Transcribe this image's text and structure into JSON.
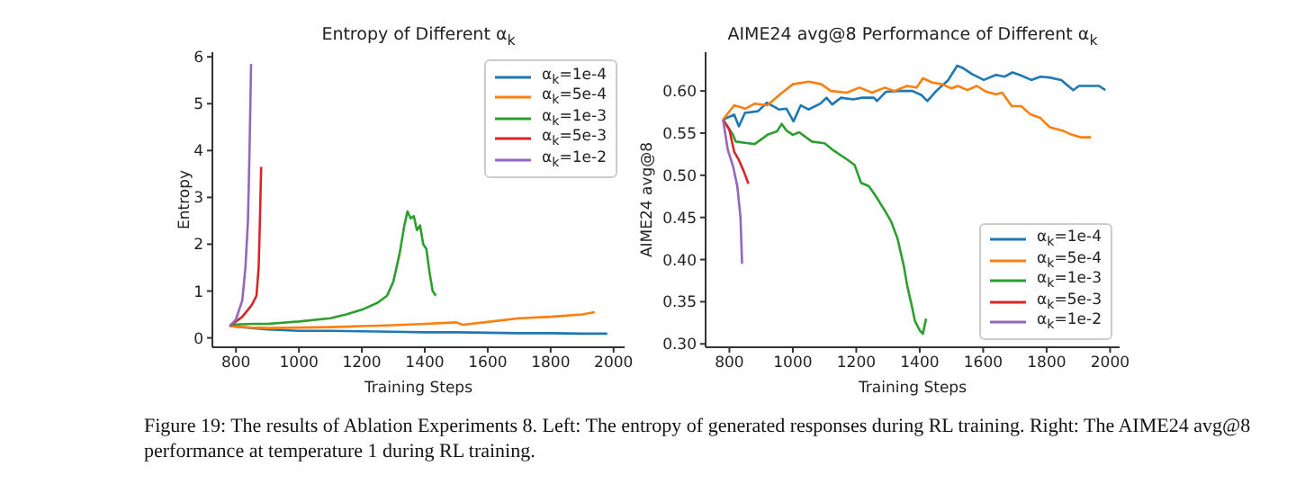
{
  "chart_data": [
    {
      "type": "line",
      "title": "Entropy of Different α$_{k}$",
      "xlabel": "Training Steps",
      "ylabel": "Entropy",
      "xlim": [
        725,
        2035
      ],
      "xticks": [
        800,
        1000,
        1200,
        1400,
        1600,
        1800,
        2000
      ],
      "ylim": [
        -0.2,
        6.1
      ],
      "yticks": [
        0,
        1,
        2,
        3,
        4,
        5,
        6
      ],
      "legend": "top right",
      "marker": "none",
      "line_style": "solid",
      "annotations": [
        "Figure 19: The results of Ablation Experiments 8. Left: The entropy of generated responses during RL training. Right: The AIME24 avg@8 performance at temperature 1 during RL training."
      ],
      "series": [
        {
          "name": "α$_{k}$=1e-4",
          "color": "#1f77b4",
          "x": [
            780,
            850,
            900,
            1000,
            1100,
            1200,
            1300,
            1400,
            1500,
            1600,
            1700,
            1800,
            1900,
            1980
          ],
          "values": [
            0.25,
            0.21,
            0.18,
            0.15,
            0.15,
            0.14,
            0.13,
            0.12,
            0.12,
            0.11,
            0.1,
            0.1,
            0.09,
            0.09
          ]
        },
        {
          "name": "α$_{k}$=5e-4",
          "color": "#ff7f0e",
          "x": [
            780,
            850,
            900,
            1000,
            1100,
            1200,
            1300,
            1400,
            1500,
            1520,
            1600,
            1700,
            1800,
            1900,
            1940
          ],
          "values": [
            0.25,
            0.22,
            0.21,
            0.22,
            0.23,
            0.25,
            0.27,
            0.3,
            0.33,
            0.28,
            0.34,
            0.42,
            0.45,
            0.5,
            0.55
          ]
        },
        {
          "name": "α$_{k}$=1e-3",
          "color": "#2ca02c",
          "x": [
            780,
            850,
            900,
            1000,
            1100,
            1150,
            1200,
            1250,
            1280,
            1300,
            1320,
            1335,
            1345,
            1355,
            1365,
            1375,
            1385,
            1395,
            1405,
            1415,
            1425,
            1435
          ],
          "values": [
            0.28,
            0.3,
            0.3,
            0.35,
            0.42,
            0.5,
            0.6,
            0.75,
            0.9,
            1.2,
            1.8,
            2.4,
            2.7,
            2.55,
            2.6,
            2.3,
            2.4,
            2.0,
            1.9,
            1.4,
            1.0,
            0.9
          ]
        },
        {
          "name": "α$_{k}$=5e-3",
          "color": "#d62728",
          "x": [
            780,
            820,
            850,
            865,
            872,
            876,
            880
          ],
          "values": [
            0.25,
            0.45,
            0.7,
            0.9,
            1.5,
            2.5,
            3.65
          ]
        },
        {
          "name": "α$_{k}$=1e-2",
          "color": "#9467bd",
          "x": [
            780,
            800,
            820,
            830,
            838,
            843,
            848
          ],
          "values": [
            0.25,
            0.4,
            0.8,
            1.5,
            2.5,
            4.0,
            5.85
          ]
        }
      ]
    },
    {
      "type": "line",
      "title": "AIME24 avg@8 Performance of Different α$_{k}$",
      "xlabel": "Training Steps",
      "ylabel": "AIME24 avg@8",
      "xlim": [
        725,
        2030
      ],
      "xticks": [
        800,
        1000,
        1200,
        1400,
        1600,
        1800,
        2000
      ],
      "ylim": [
        0.296,
        0.646
      ],
      "yticks": [
        {
          "value": 0.3,
          "label": "0.30"
        },
        {
          "value": 0.35,
          "label": "0.35"
        },
        {
          "value": 0.4,
          "label": "0.40"
        },
        {
          "value": 0.45,
          "label": "0.45"
        },
        {
          "value": 0.5,
          "label": "0.50"
        },
        {
          "value": 0.55,
          "label": "0.55"
        },
        {
          "value": 0.6,
          "label": "0.60"
        }
      ],
      "legend": "bottom right",
      "marker": "none",
      "line_style": "solid",
      "series": [
        {
          "name": "α$_{k}$=1e-4",
          "color": "#1f77b4",
          "x": [
            780,
            815,
            830,
            849,
            890,
            918,
            956,
            980,
            1002,
            1025,
            1049,
            1087,
            1106,
            1124,
            1152,
            1190,
            1218,
            1256,
            1265,
            1293,
            1331,
            1377,
            1406,
            1424,
            1452,
            1490,
            1518,
            1537,
            1565,
            1602,
            1640,
            1668,
            1692,
            1715,
            1752,
            1780,
            1809,
            1846,
            1884,
            1902,
            1940,
            1965,
            1985
          ],
          "values": [
            0.566,
            0.572,
            0.558,
            0.574,
            0.576,
            0.586,
            0.578,
            0.579,
            0.564,
            0.583,
            0.578,
            0.585,
            0.592,
            0.584,
            0.592,
            0.59,
            0.592,
            0.592,
            0.588,
            0.599,
            0.6,
            0.6,
            0.595,
            0.588,
            0.6,
            0.613,
            0.63,
            0.627,
            0.62,
            0.613,
            0.619,
            0.617,
            0.622,
            0.619,
            0.613,
            0.617,
            0.616,
            0.613,
            0.601,
            0.606,
            0.606,
            0.606,
            0.601
          ]
        },
        {
          "name": "α$_{k}$=5e-4",
          "color": "#ff7f0e",
          "x": [
            780,
            815,
            850,
            880,
            920,
            960,
            1000,
            1050,
            1090,
            1120,
            1170,
            1210,
            1250,
            1290,
            1320,
            1360,
            1390,
            1410,
            1440,
            1470,
            1500,
            1520,
            1550,
            1580,
            1610,
            1640,
            1660,
            1690,
            1720,
            1750,
            1780,
            1810,
            1850,
            1880,
            1910,
            1940
          ],
          "values": [
            0.566,
            0.583,
            0.579,
            0.585,
            0.583,
            0.596,
            0.608,
            0.611,
            0.608,
            0.6,
            0.598,
            0.604,
            0.598,
            0.604,
            0.6,
            0.606,
            0.604,
            0.615,
            0.61,
            0.608,
            0.603,
            0.606,
            0.601,
            0.606,
            0.599,
            0.596,
            0.598,
            0.582,
            0.582,
            0.572,
            0.568,
            0.557,
            0.553,
            0.548,
            0.545,
            0.545
          ]
        },
        {
          "name": "α$_{k}$=1e-3",
          "color": "#2ca02c",
          "x": [
            780,
            810,
            820,
            860,
            880,
            920,
            950,
            965,
            980,
            1000,
            1020,
            1060,
            1100,
            1130,
            1170,
            1195,
            1215,
            1240,
            1260,
            1290,
            1310,
            1330,
            1350,
            1360,
            1375,
            1385,
            1400,
            1410,
            1420
          ],
          "values": [
            0.566,
            0.549,
            0.54,
            0.538,
            0.537,
            0.548,
            0.552,
            0.561,
            0.553,
            0.548,
            0.551,
            0.54,
            0.538,
            0.529,
            0.519,
            0.512,
            0.491,
            0.487,
            0.476,
            0.458,
            0.445,
            0.425,
            0.392,
            0.37,
            0.345,
            0.327,
            0.316,
            0.312,
            0.33
          ]
        },
        {
          "name": "α$_{k}$=5e-3",
          "color": "#d62728",
          "x": [
            780,
            800,
            815,
            830,
            845,
            860
          ],
          "values": [
            0.566,
            0.554,
            0.528,
            0.518,
            0.505,
            0.49
          ]
        },
        {
          "name": "α$_{k}$=1e-2",
          "color": "#9467bd",
          "x": [
            780,
            795,
            812,
            825,
            835,
            840
          ],
          "values": [
            0.566,
            0.53,
            0.51,
            0.487,
            0.45,
            0.395
          ]
        }
      ]
    }
  ]
}
